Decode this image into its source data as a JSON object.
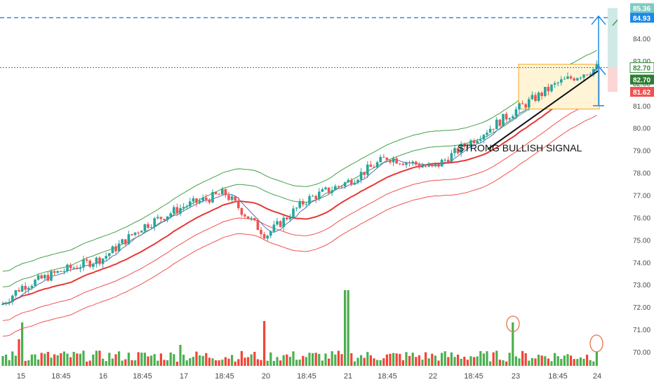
{
  "chart_data": {
    "type": "candlestick",
    "title": "",
    "xlabel": "",
    "ylabel": "",
    "ylim": [
      69.5,
      85.6
    ],
    "grid": false,
    "x_tick_labels": [
      "15",
      "18:45",
      "16",
      "18:45",
      "17",
      "18:45",
      "20",
      "18:45",
      "21",
      "18:45",
      "22",
      "18:45",
      "23",
      "18:45",
      "24"
    ],
    "y_tick_labels": [
      "70.00",
      "71.00",
      "72.00",
      "73.00",
      "74.00",
      "75.00",
      "76.00",
      "77.00",
      "78.00",
      "79.00",
      "80.00",
      "81.00",
      "82.00",
      "83.00",
      "84.00"
    ],
    "price_anchors": {
      "x": [
        "15",
        "18:45",
        "16",
        "18:45",
        "17",
        "18:45",
        "20",
        "18:45",
        "21",
        "18:45",
        "22",
        "18:45",
        "23",
        "18:45",
        "24"
      ],
      "close": [
        72.9,
        73.6,
        74.2,
        75.6,
        76.5,
        77.1,
        75.2,
        76.8,
        77.6,
        78.7,
        78.2,
        79.5,
        80.8,
        82.0,
        82.7
      ]
    },
    "series": [
      {
        "name": "",
        "color": "#26a69a",
        "kind": "candles"
      },
      {
        "name": "",
        "color": "#e53935",
        "kind": "moving-average"
      },
      {
        "name": "",
        "color": "#5c6bc0",
        "kind": "moving-average"
      },
      {
        "name": "",
        "color": "#43a047",
        "kind": "upper-envelope"
      },
      {
        "name": "",
        "color": "#ef5350",
        "kind": "lower-envelope"
      }
    ],
    "annotations": {
      "signal_text": "STRONG BULLISH SIGNAL",
      "target_level_1": "85.36",
      "target_level_2": "84.93",
      "last_price_1": "82.70",
      "last_price_2": "82.70",
      "stop_level": "81.62",
      "consolidation_box": {
        "y_low": 80.85,
        "y_high": 82.85
      }
    },
    "volume_highlights": [
      "23",
      "24"
    ]
  },
  "colors": {
    "up": "#26a69a",
    "down": "#ef5350",
    "volume_up": "#4caf50",
    "volume_down": "#f44336",
    "target_line": "#1e88e5",
    "price_line": "#388e3c",
    "stop_tag": "#ef5350",
    "axis_text": "#4a4a4a",
    "box_fill": "#fff4d6",
    "box_stroke": "#f5a623"
  }
}
